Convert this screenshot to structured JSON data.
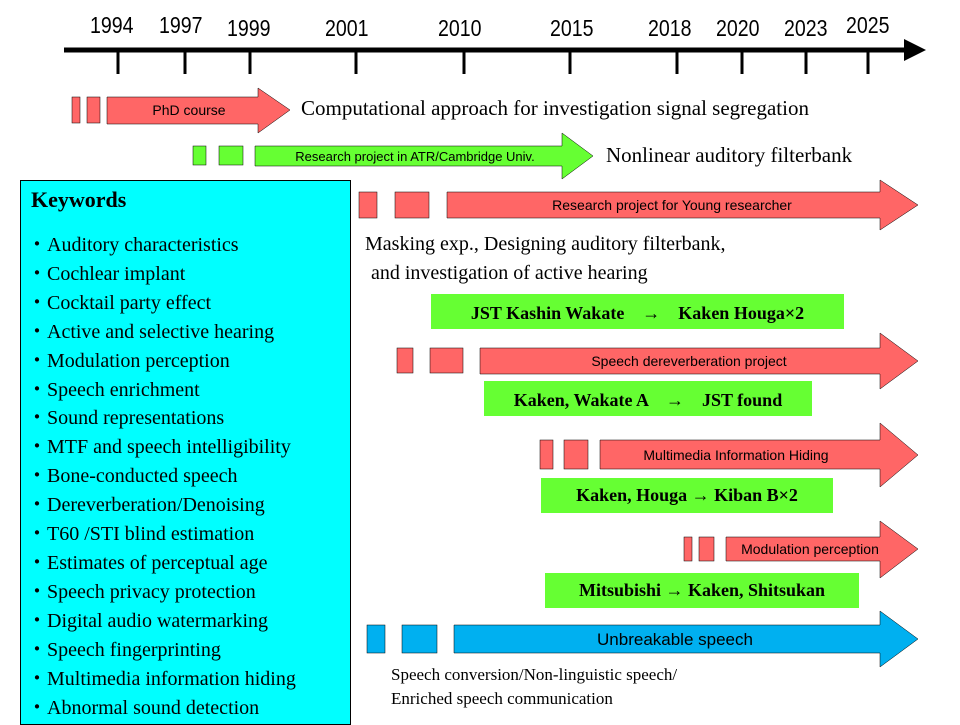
{
  "timeline": {
    "years": [
      "1994",
      "1997",
      "1999",
      "2001",
      "2010",
      "2015",
      "2018",
      "2020",
      "2023",
      "2025"
    ]
  },
  "projects": {
    "phd": {
      "label": "PhD course",
      "description": "Computational approach for investigation signal segregation",
      "color": "#ff6666"
    },
    "atr": {
      "label": "Research project in ATR/Cambridge Univ.",
      "description": "Nonlinear auditory filterbank",
      "color": "#66ff33"
    },
    "young": {
      "label": "Research project for Young researcher",
      "description_line1": "Masking exp., Designing auditory filterbank,",
      "description_line2": "and investigation of active hearing",
      "funding": "JST Kashin Wakate　→　Kaken Houga×2",
      "color": "#ff6666"
    },
    "dereverb": {
      "label": "Speech dereverberation project",
      "funding": "Kaken, Wakate A　→　JST found",
      "color": "#ff6666"
    },
    "hiding": {
      "label": "Multimedia Information Hiding",
      "funding": "Kaken, Houga → Kiban B×2",
      "color": "#ff6666"
    },
    "modulation": {
      "label": "Modulation perception",
      "funding": "Mitsubishi → Kaken, Shitsukan",
      "color": "#ff6666"
    },
    "unbreakable": {
      "label": "Unbreakable speech",
      "description_line1": "Speech conversion/Non-linguistic speech/",
      "description_line2": "Enriched speech communication",
      "color": "#00b0f0"
    }
  },
  "keywords": {
    "title": "Keywords",
    "items": [
      "・Auditory characteristics",
      "・Cochlear implant",
      "・Cocktail party effect",
      "・Active and selective hearing",
      "・Modulation perception",
      "・Speech enrichment",
      "・Sound representations",
      "・MTF and speech intelligibility",
      "・Bone-conducted speech",
      "・Dereverberation/Denoising",
      "・T60 /STI blind estimation",
      "・Estimates of perceptual age",
      "・Speech privacy protection",
      "・Digital audio watermarking",
      "・Speech fingerprinting",
      "・Multimedia information hiding",
      "・Abnormal sound detection"
    ]
  }
}
